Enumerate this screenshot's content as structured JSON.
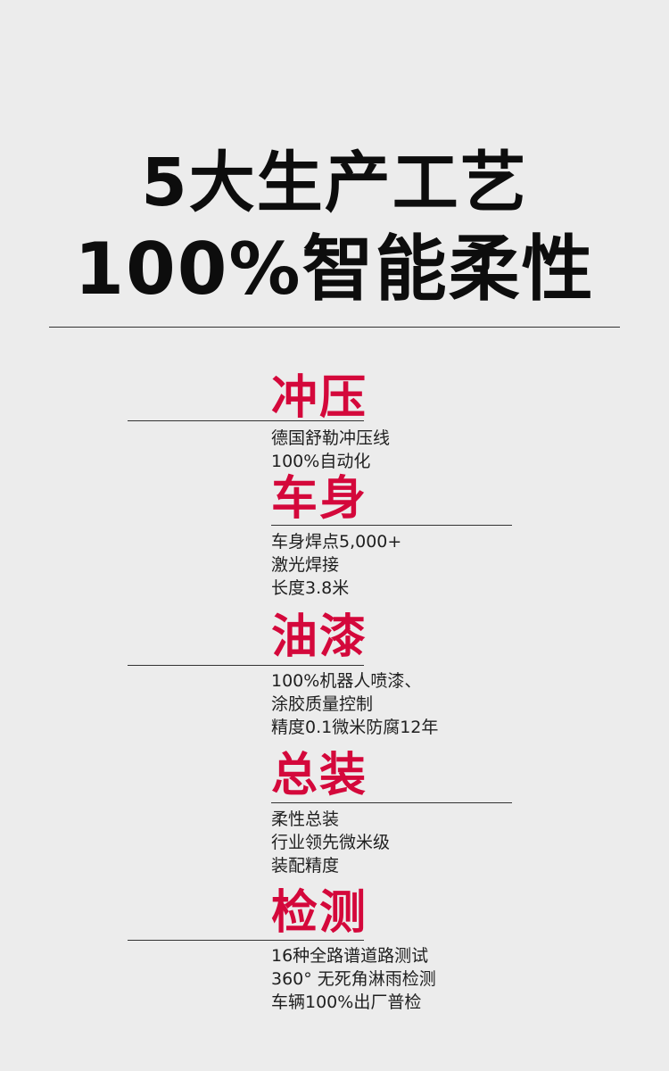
{
  "headline": {
    "line1": "5大生产工艺",
    "line2": "100%智能柔性"
  },
  "sections": [
    {
      "title": "冲压",
      "lines": [
        "德国舒勒冲压线",
        "100%自动化"
      ]
    },
    {
      "title": "车身",
      "lines": [
        "车身焊点5,000+",
        "激光焊接",
        "长度3.8米"
      ]
    },
    {
      "title": "油漆",
      "lines": [
        "100%机器人喷漆、",
        "涂胶质量控制",
        "精度0.1微米防腐12年"
      ]
    },
    {
      "title": "总装",
      "lines": [
        "柔性总装",
        "行业领先微米级",
        "装配精度"
      ]
    },
    {
      "title": "检测",
      "lines": [
        "16种全路谱道路测试",
        "360° 无死角淋雨检测",
        "车辆100%出厂普检"
      ]
    }
  ],
  "colors": {
    "background": "#ececec",
    "accent": "#d4083b",
    "text": "#1a1a1a"
  }
}
